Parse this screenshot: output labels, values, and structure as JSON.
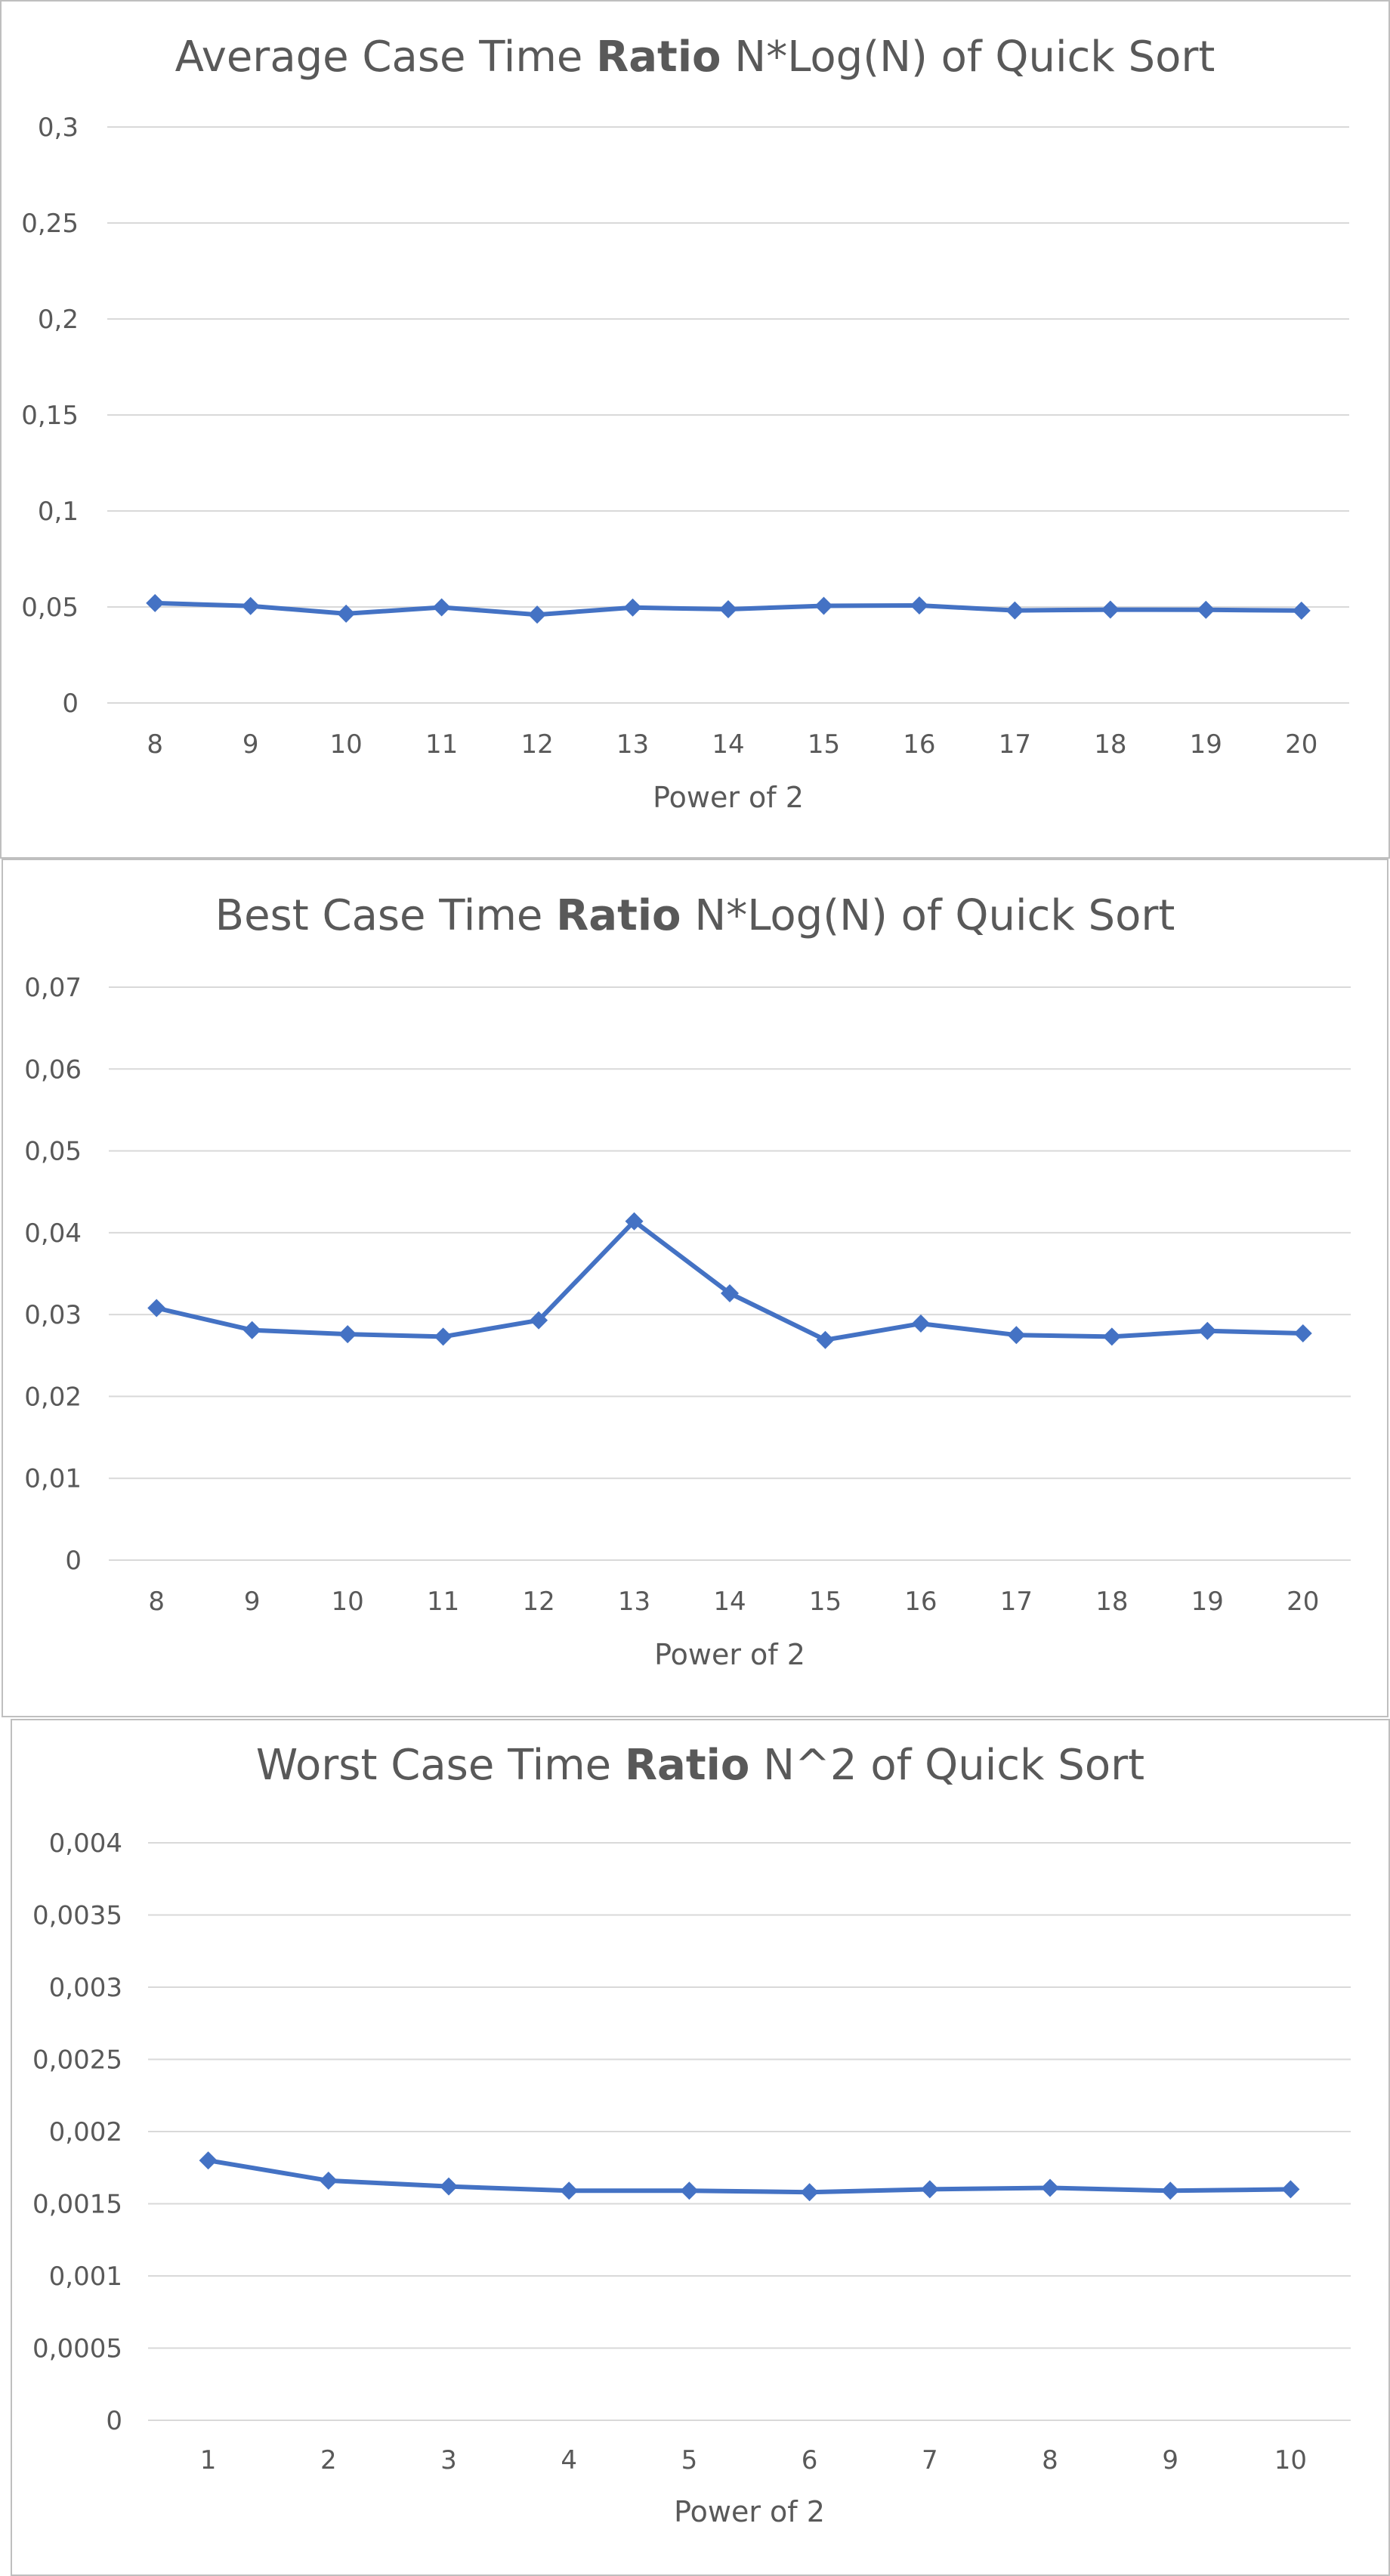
{
  "chart_data": [
    {
      "type": "line",
      "title_parts": [
        "Average Case Time ",
        "Ratio",
        " N*Log(N) of Quick Sort"
      ],
      "xlabel": "Power of 2",
      "ylabel": "",
      "categories": [
        "8",
        "9",
        "10",
        "11",
        "12",
        "13",
        "14",
        "15",
        "16",
        "17",
        "18",
        "19",
        "20"
      ],
      "y_ticks": [
        "0",
        "0,05",
        "0,1",
        "0,15",
        "0,2",
        "0,25",
        "0,3"
      ],
      "ylim": [
        0,
        0.3
      ],
      "series": [
        {
          "values": [
            0.052,
            0.0505,
            0.0465,
            0.0498,
            0.046,
            0.0497,
            0.0488,
            0.0506,
            0.0508,
            0.0482,
            0.0486,
            0.0485,
            0.0481
          ]
        }
      ],
      "grid": true,
      "legend": "none",
      "color": "#4472c4"
    },
    {
      "type": "line",
      "title_parts": [
        "Best Case Time ",
        "Ratio",
        " N*Log(N) of Quick Sort"
      ],
      "xlabel": "Power of 2",
      "ylabel": "",
      "categories": [
        "8",
        "9",
        "10",
        "11",
        "12",
        "13",
        "14",
        "15",
        "16",
        "17",
        "18",
        "19",
        "20"
      ],
      "y_ticks": [
        "0",
        "0,01",
        "0,02",
        "0,03",
        "0,04",
        "0,05",
        "0,06",
        "0,07"
      ],
      "ylim": [
        0,
        0.07
      ],
      "series": [
        {
          "values": [
            0.0308,
            0.0281,
            0.0276,
            0.0273,
            0.0293,
            0.0414,
            0.0326,
            0.0269,
            0.0289,
            0.0275,
            0.0273,
            0.028,
            0.0277
          ]
        }
      ],
      "grid": true,
      "legend": "none",
      "color": "#4472c4"
    },
    {
      "type": "line",
      "title_parts": [
        "Worst Case Time ",
        "Ratio",
        " N^2 of Quick Sort"
      ],
      "xlabel": "Power of 2",
      "ylabel": "",
      "categories": [
        "1",
        "2",
        "3",
        "4",
        "5",
        "6",
        "7",
        "8",
        "9",
        "10"
      ],
      "y_ticks": [
        "0",
        "0,0005",
        "0,001",
        "0,0015",
        "0,002",
        "0,0025",
        "0,003",
        "0,0035",
        "0,004"
      ],
      "ylim": [
        0,
        0.004
      ],
      "series": [
        {
          "values": [
            0.0018,
            0.00166,
            0.00162,
            0.00159,
            0.00159,
            0.00158,
            0.0016,
            0.00161,
            0.00159,
            0.0016
          ]
        }
      ],
      "grid": true,
      "legend": "none",
      "color": "#4472c4"
    }
  ]
}
